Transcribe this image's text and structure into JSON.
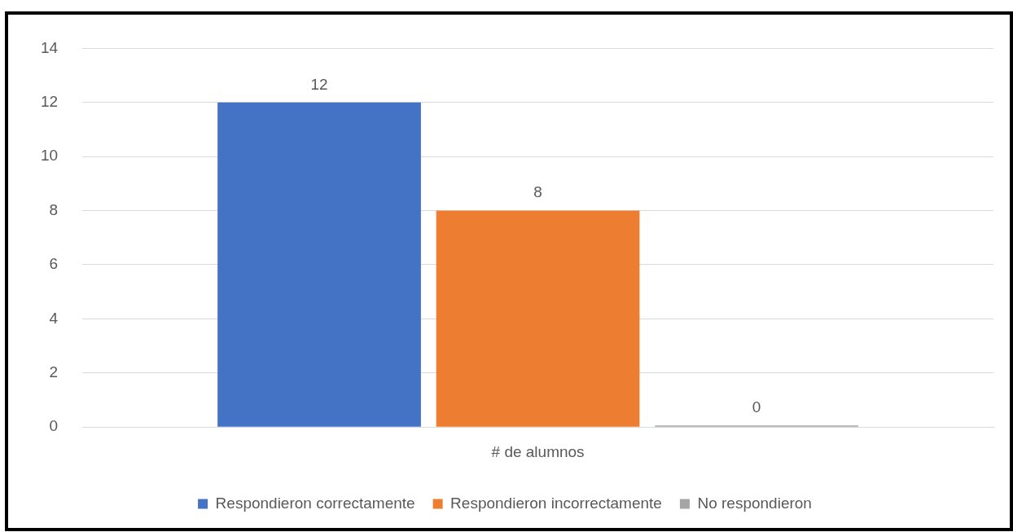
{
  "chart_data": {
    "type": "bar",
    "categories": [
      "# de alumnos"
    ],
    "series": [
      {
        "name": "Respondieron correctamente",
        "color": "#4472c4",
        "values": [
          12
        ]
      },
      {
        "name": "Respondieron incorrectamente",
        "color": "#ed7d31",
        "values": [
          8
        ]
      },
      {
        "name": "No respondieron",
        "color": "#a5a5a5",
        "values": [
          0
        ]
      }
    ],
    "ylim": [
      0,
      14
    ],
    "yticks": [
      0,
      2,
      4,
      6,
      8,
      10,
      12,
      14
    ],
    "grid": "y",
    "legend": "bottom",
    "data_labels": true
  }
}
